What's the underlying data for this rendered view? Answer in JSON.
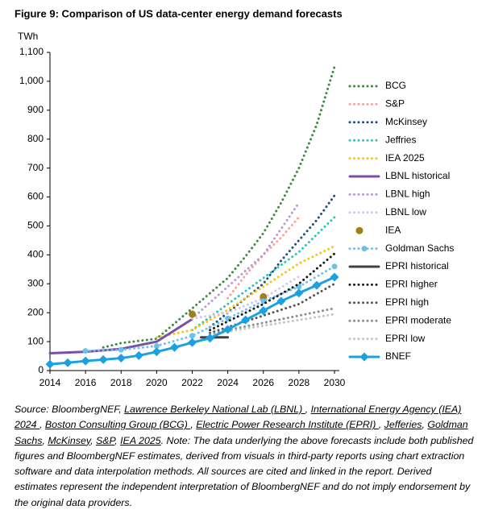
{
  "chart_data": {
    "type": "line",
    "title": "Figure 9:  Comparison of US data-center energy demand forecasts",
    "y_label": "TWh",
    "xlim": [
      2014,
      2030
    ],
    "xticks": [
      2014,
      2016,
      2018,
      2020,
      2022,
      2024,
      2026,
      2028,
      2030
    ],
    "ylim": [
      0,
      1100
    ],
    "yticks": [
      0,
      100,
      200,
      300,
      400,
      500,
      600,
      700,
      800,
      900,
      {
        "value": 1000,
        "label": "1,000"
      },
      {
        "value": 1100,
        "label": "1,100"
      }
    ],
    "grid": false,
    "legend": "right",
    "series": [
      {
        "name": "BCG",
        "color": "#3b8a3e",
        "style": "dotted",
        "x": [
          2017,
          2018,
          2020,
          2024,
          2025,
          2026,
          2027,
          2028,
          2029,
          2030
        ],
        "values": [
          80,
          95,
          110,
          320,
          395,
          475,
          580,
          700,
          850,
          1050
        ]
      },
      {
        "name": "S&P",
        "color": "#f3a39c",
        "style": "dotted",
        "x": [
          2024,
          2025,
          2026,
          2027,
          2028
        ],
        "values": [
          250,
          330,
          400,
          460,
          530
        ]
      },
      {
        "name": "McKinsey",
        "color": "#1f4e79",
        "style": "dotted",
        "x": [
          2023,
          2024,
          2025,
          2026,
          2027,
          2028,
          2029,
          2030
        ],
        "values": [
          150,
          200,
          250,
          300,
          380,
          450,
          520,
          605
        ]
      },
      {
        "name": "Jeffries",
        "color": "#2ec4b6",
        "style": "dotted",
        "x": [
          2022,
          2024,
          2026,
          2028,
          2030
        ],
        "values": [
          140,
          230,
          320,
          410,
          530
        ]
      },
      {
        "name": "IEA 2025",
        "color": "#f5c518",
        "style": "dotted",
        "x": [
          2020,
          2022,
          2024,
          2026,
          2028,
          2030
        ],
        "values": [
          115,
          140,
          210,
          290,
          370,
          430
        ]
      },
      {
        "name": "LBNL historical",
        "color": "#7b4fa8",
        "style": "solid",
        "x": [
          2014,
          2016,
          2018,
          2020,
          2022
        ],
        "values": [
          60,
          65,
          75,
          100,
          178
        ]
      },
      {
        "name": "LBNL high",
        "color": "#b79ad6",
        "style": "dotted",
        "x": [
          2022,
          2024,
          2026,
          2028
        ],
        "values": [
          180,
          290,
          400,
          580
        ]
      },
      {
        "name": "LBNL low",
        "color": "#d6c6ea",
        "style": "dotted",
        "x": [
          2022,
          2024,
          2026,
          2028
        ],
        "values": [
          180,
          200,
          250,
          325
        ]
      },
      {
        "name": "IEA",
        "color": "#a0801a",
        "style": "scatter",
        "x": [
          2022,
          2026
        ],
        "values": [
          195,
          255
        ]
      },
      {
        "name": "Goldman Sachs",
        "color": "#6cc0ec",
        "style": "dotted-marker",
        "x": [
          2016,
          2018,
          2020,
          2022,
          2024,
          2026,
          2028,
          2030
        ],
        "values": [
          68,
          72,
          85,
          120,
          180,
          240,
          290,
          360
        ]
      },
      {
        "name": "EPRI historical",
        "color": "#404040",
        "style": "solid",
        "x": [
          2022.5,
          2023,
          2024
        ],
        "values": [
          115,
          115,
          115
        ]
      },
      {
        "name": "EPRI higher",
        "color": "#1a1a1a",
        "style": "dotted",
        "x": [
          2023,
          2024,
          2026,
          2028,
          2030
        ],
        "values": [
          140,
          170,
          230,
          300,
          404
        ]
      },
      {
        "name": "EPRI high",
        "color": "#555555",
        "style": "dotted",
        "x": [
          2023,
          2024,
          2026,
          2028,
          2030
        ],
        "values": [
          130,
          150,
          190,
          230,
          300
        ]
      },
      {
        "name": "EPRI moderate",
        "color": "#8c8c8c",
        "style": "dotted",
        "x": [
          2023,
          2024,
          2026,
          2028,
          2030
        ],
        "values": [
          125,
          140,
          165,
          190,
          215
        ]
      },
      {
        "name": "EPRI low",
        "color": "#c4c4c4",
        "style": "dotted",
        "x": [
          2023,
          2024,
          2026,
          2028,
          2030
        ],
        "values": [
          120,
          135,
          155,
          175,
          195
        ]
      },
      {
        "name": "BNEF",
        "color": "#1ba1e2",
        "style": "solid-diamond",
        "x": [
          2014,
          2015,
          2016,
          2017,
          2018,
          2019,
          2020,
          2021,
          2022,
          2023,
          2024,
          2025,
          2026,
          2027,
          2028,
          2029,
          2030
        ],
        "values": [
          22,
          27,
          33,
          38,
          43,
          52,
          65,
          80,
          97,
          112,
          142,
          175,
          207,
          240,
          268,
          295,
          323
        ]
      }
    ],
    "source": [
      {
        "text": "Source: BloombergNEF, ",
        "link": false
      },
      {
        "text": "Lawrence Berkeley National Lab (LBNL) ",
        "link": true
      },
      {
        "text": ", ",
        "link": false
      },
      {
        "text": "International Energy Agency (IEA) 2024 ",
        "link": true
      },
      {
        "text": ", ",
        "link": false
      },
      {
        "text": "Boston Consulting Group (BCG) ",
        "link": true
      },
      {
        "text": ", ",
        "link": false
      },
      {
        "text": "Electric Power Research Institute (EPRI) ",
        "link": true
      },
      {
        "text": ", ",
        "link": false
      },
      {
        "text": "Jefferies",
        "link": true
      },
      {
        "text": ", ",
        "link": false
      },
      {
        "text": "Goldman Sachs",
        "link": true
      },
      {
        "text": ", ",
        "link": false
      },
      {
        "text": "McKinsey",
        "link": true
      },
      {
        "text": ", ",
        "link": false
      },
      {
        "text": "S&P",
        "link": true
      },
      {
        "text": ", ",
        "link": false
      },
      {
        "text": "IEA 2025",
        "link": true
      },
      {
        "text": ". Note: The data underlying the above forecasts include both published figures and BloombergNEF estimates, derived from visuals in third-party reports using chart extraction software and data interpolation methods. All sources are cited and linked in the report. Derived estimates represent the independent interpretation of BloombergNEF and do not imply endorsement by the original data providers.",
        "link": false
      }
    ]
  }
}
